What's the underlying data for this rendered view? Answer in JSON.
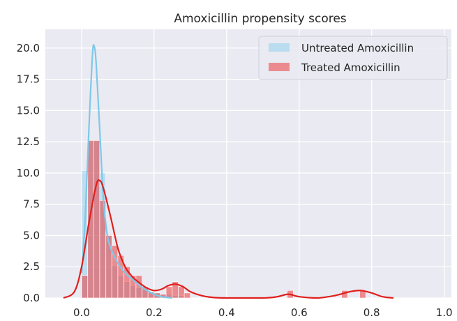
{
  "chart_data": {
    "type": "histogram",
    "title": "Amoxicillin propensity scores",
    "xlabel": "",
    "ylabel": "",
    "xlim": [
      -0.1,
      1.02
    ],
    "ylim": [
      0,
      21.5
    ],
    "x_ticks": [
      "0.0",
      "0.2",
      "0.4",
      "0.6",
      "0.8",
      "1.0"
    ],
    "y_ticks": [
      "0.0",
      "2.5",
      "5.0",
      "7.5",
      "10.0",
      "12.5",
      "15.0",
      "17.5",
      "20.0"
    ],
    "grid": true,
    "legend_position": "top-right",
    "bin_width": 0.0167,
    "series": [
      {
        "name": "Untreated Amoxicillin",
        "color": "#87ceeb",
        "bins": [
          {
            "x": 0.0,
            "value": 10.2
          },
          {
            "x": 0.017,
            "value": 12.6
          },
          {
            "x": 0.033,
            "value": 12.6
          },
          {
            "x": 0.05,
            "value": 10.0
          },
          {
            "x": 0.067,
            "value": 5.0
          },
          {
            "x": 0.083,
            "value": 2.6
          },
          {
            "x": 0.1,
            "value": 1.8
          },
          {
            "x": 0.117,
            "value": 1.3
          },
          {
            "x": 0.133,
            "value": 1.0
          },
          {
            "x": 0.15,
            "value": 0.8
          },
          {
            "x": 0.167,
            "value": 0.7
          },
          {
            "x": 0.183,
            "value": 0.5
          },
          {
            "x": 0.2,
            "value": 0.4
          },
          {
            "x": 0.217,
            "value": 0.3
          },
          {
            "x": 0.233,
            "value": 0.3
          },
          {
            "x": 0.25,
            "value": 0.2
          },
          {
            "x": 0.267,
            "value": 0.2
          }
        ],
        "kde": [
          [
            0.0,
            2.0
          ],
          [
            0.01,
            6.5
          ],
          [
            0.02,
            13.5
          ],
          [
            0.03,
            19.5
          ],
          [
            0.035,
            20.1
          ],
          [
            0.04,
            18.8
          ],
          [
            0.05,
            13.5
          ],
          [
            0.06,
            8.0
          ],
          [
            0.07,
            5.2
          ],
          [
            0.08,
            4.0
          ],
          [
            0.1,
            2.8
          ],
          [
            0.12,
            2.0
          ],
          [
            0.14,
            1.5
          ],
          [
            0.16,
            1.0
          ],
          [
            0.18,
            0.6
          ],
          [
            0.2,
            0.3
          ],
          [
            0.22,
            0.1
          ],
          [
            0.25,
            0.0
          ]
        ]
      },
      {
        "name": "Treated Amoxicillin",
        "color": "#ee2c2c",
        "bins": [
          {
            "x": 0.0,
            "value": 1.8
          },
          {
            "x": 0.017,
            "value": 12.6
          },
          {
            "x": 0.033,
            "value": 12.6
          },
          {
            "x": 0.05,
            "value": 7.8
          },
          {
            "x": 0.067,
            "value": 5.0
          },
          {
            "x": 0.083,
            "value": 4.2
          },
          {
            "x": 0.1,
            "value": 3.4
          },
          {
            "x": 0.117,
            "value": 2.5
          },
          {
            "x": 0.133,
            "value": 1.8
          },
          {
            "x": 0.15,
            "value": 1.8
          },
          {
            "x": 0.167,
            "value": 0.9
          },
          {
            "x": 0.183,
            "value": 0.5
          },
          {
            "x": 0.2,
            "value": 0.4
          },
          {
            "x": 0.217,
            "value": 0.3
          },
          {
            "x": 0.233,
            "value": 0.9
          },
          {
            "x": 0.25,
            "value": 1.3
          },
          {
            "x": 0.267,
            "value": 0.9
          },
          {
            "x": 0.283,
            "value": 0.4
          },
          {
            "x": 0.567,
            "value": 0.6
          },
          {
            "x": 0.717,
            "value": 0.6
          },
          {
            "x": 0.767,
            "value": 0.6
          }
        ],
        "kde": [
          [
            -0.05,
            0.0
          ],
          [
            -0.02,
            0.5
          ],
          [
            0.0,
            2.5
          ],
          [
            0.02,
            6.0
          ],
          [
            0.04,
            9.0
          ],
          [
            0.05,
            9.4
          ],
          [
            0.06,
            8.8
          ],
          [
            0.08,
            6.5
          ],
          [
            0.1,
            4.0
          ],
          [
            0.12,
            2.5
          ],
          [
            0.14,
            1.7
          ],
          [
            0.16,
            1.2
          ],
          [
            0.18,
            0.8
          ],
          [
            0.2,
            0.6
          ],
          [
            0.22,
            0.7
          ],
          [
            0.24,
            1.0
          ],
          [
            0.26,
            1.1
          ],
          [
            0.28,
            0.9
          ],
          [
            0.3,
            0.5
          ],
          [
            0.33,
            0.2
          ],
          [
            0.36,
            0.05
          ],
          [
            0.4,
            0.0
          ],
          [
            0.5,
            0.0
          ],
          [
            0.54,
            0.1
          ],
          [
            0.57,
            0.3
          ],
          [
            0.6,
            0.1
          ],
          [
            0.65,
            0.0
          ],
          [
            0.7,
            0.2
          ],
          [
            0.74,
            0.5
          ],
          [
            0.77,
            0.6
          ],
          [
            0.8,
            0.4
          ],
          [
            0.83,
            0.1
          ],
          [
            0.86,
            0.0
          ]
        ]
      }
    ]
  }
}
